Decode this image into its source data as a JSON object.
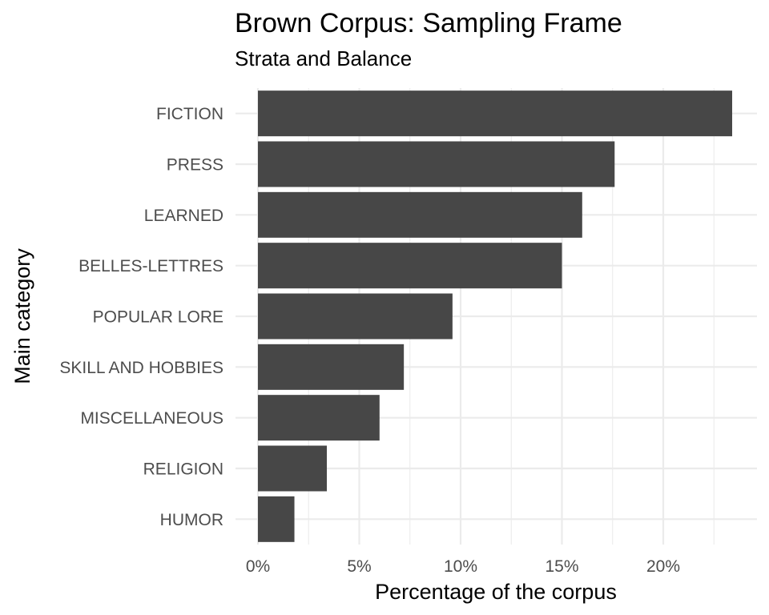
{
  "chart_data": {
    "type": "bar",
    "orientation": "horizontal",
    "title": "Brown Corpus: Sampling Frame",
    "subtitle": "Strata and Balance",
    "xlabel": "Percentage of the corpus",
    "ylabel": "Main category",
    "categories": [
      "FICTION",
      "PRESS",
      "LEARNED",
      "BELLES-LETTRES",
      "POPULAR LORE",
      "SKILL AND HOBBIES",
      "MISCELLANEOUS",
      "RELIGION",
      "HUMOR"
    ],
    "values": [
      23.4,
      17.6,
      16.0,
      15.0,
      9.6,
      7.2,
      6.0,
      3.4,
      1.8
    ],
    "xlim": [
      0,
      25
    ],
    "xticks": [
      0,
      5,
      10,
      15,
      20
    ],
    "xtick_labels": [
      "0%",
      "5%",
      "10%",
      "15%",
      "20%"
    ],
    "bar_color": "#474747",
    "grid": true,
    "legend": "none"
  }
}
